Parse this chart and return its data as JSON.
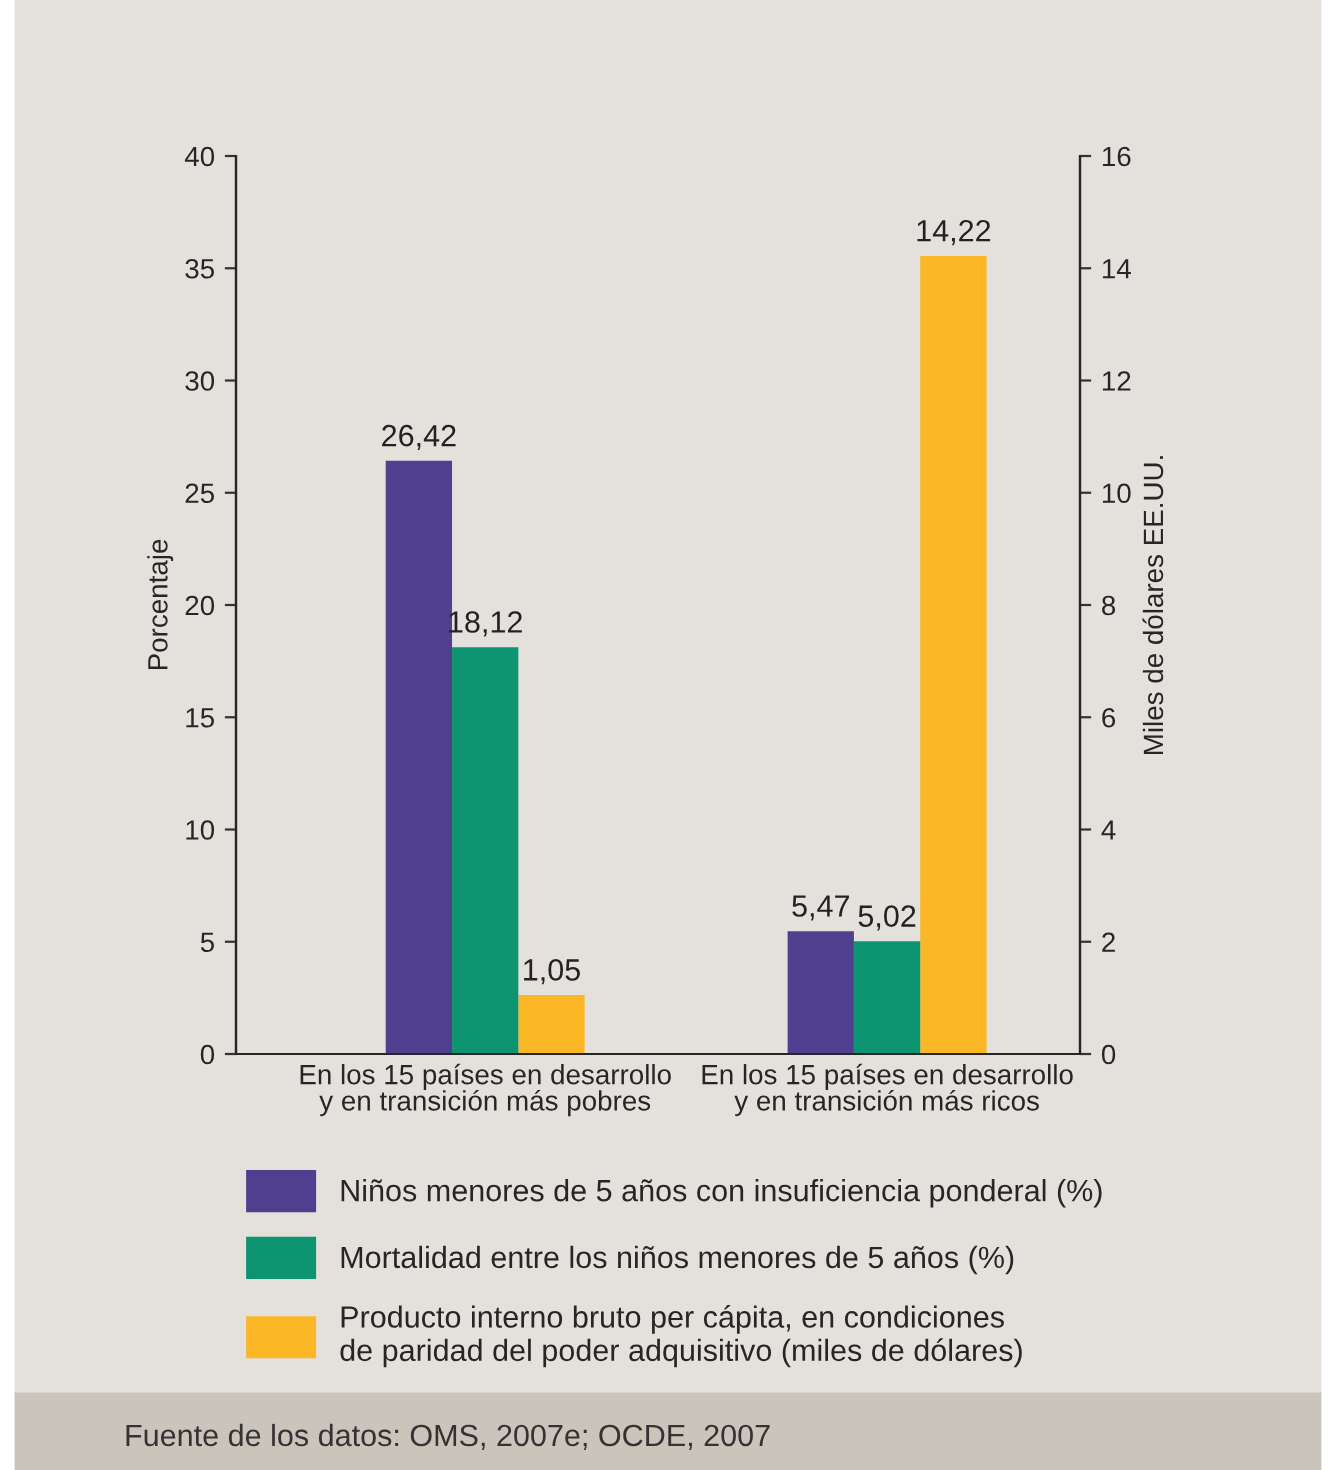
{
  "chart_data": {
    "type": "bar",
    "categories": [
      "En los 15 países en desarrollo y en transición más pobres",
      "En los 15 países en desarrollo y en transición más ricos"
    ],
    "ylabel": "Porcentaje",
    "y2label": "Miles de dólares EE.UU.",
    "series": [
      {
        "name": "Niños menores de 5 años con insuficiencia ponderal (%)",
        "color": "#4e3f8f",
        "values": [
          26.42,
          5.47
        ],
        "value_labels": [
          "26,42",
          "5,47"
        ]
      },
      {
        "name": "Mortalidad entre los niños menores de 5 años (%)",
        "color": "#0f9471",
        "values": [
          18.12,
          5.02
        ],
        "value_labels": [
          "18,12",
          "5,02"
        ]
      },
      {
        "name": "Producto interno bruto per cápita, en condiciones de paridad del poder adquisitivo (miles de dólares)",
        "color": "#fbb726",
        "values": [
          1.05,
          14.22
        ],
        "value_labels": [
          "1,05",
          "14,22"
        ],
        "axis": "y2"
      }
    ],
    "ylim": [
      0,
      40
    ],
    "yticks": [
      0,
      5,
      10,
      15,
      20,
      25,
      30,
      35,
      40
    ],
    "y2lim": [
      0,
      16
    ],
    "y2ticks": [
      0,
      2,
      4,
      6,
      8,
      10,
      12,
      14,
      16
    ],
    "grid": false,
    "legend": "bottom",
    "annotations": [
      "Fuente de los datos: OMS, 2007e; OCDE, 2007"
    ]
  }
}
